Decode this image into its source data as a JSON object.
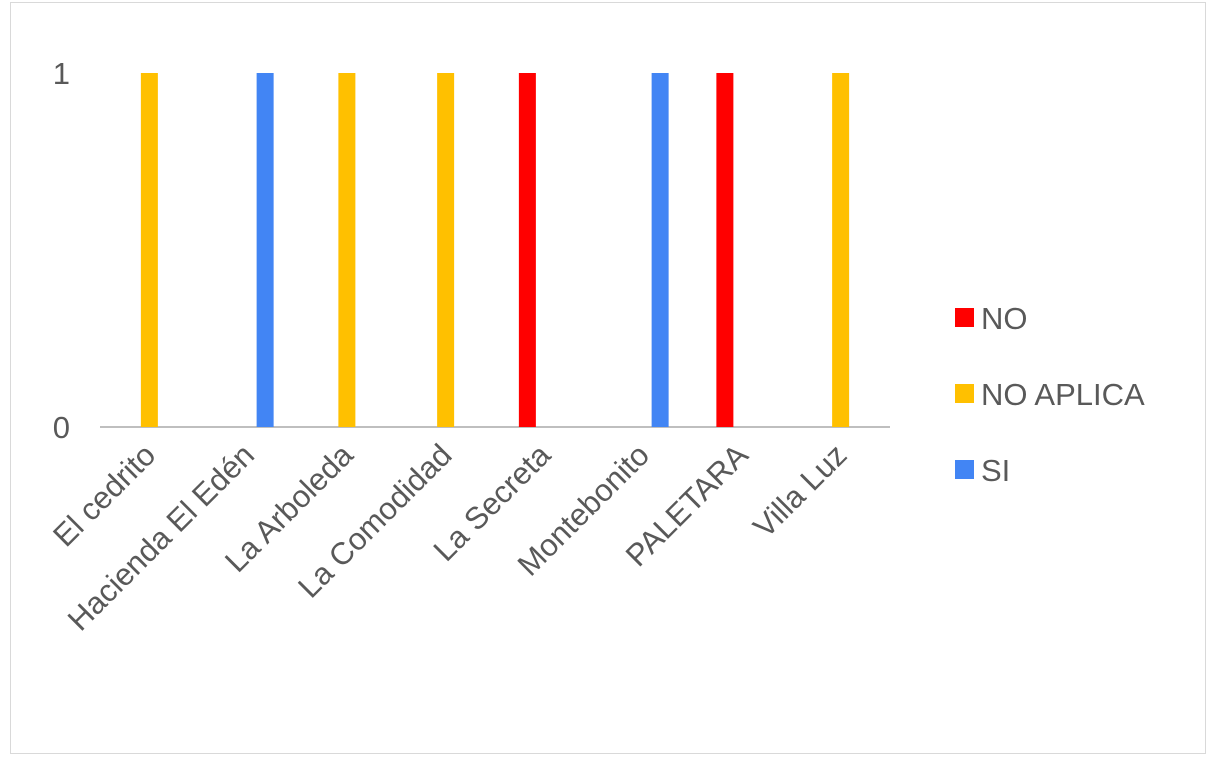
{
  "chart_data": {
    "type": "bar",
    "title": "",
    "xlabel": "",
    "ylabel": "",
    "ylim": [
      0,
      1
    ],
    "yticks": [
      "0",
      "1"
    ],
    "grid": false,
    "legend_position": "right",
    "categories": [
      "El cedrito",
      "Hacienda El Edén",
      "La Arboleda",
      "La Comodidad",
      "La Secreta",
      "Montebonito",
      "PALETARA",
      "Villa Luz"
    ],
    "series": [
      {
        "name": "NO",
        "color": "#ff0000",
        "values": [
          0,
          0,
          0,
          0,
          1,
          0,
          1,
          0
        ]
      },
      {
        "name": "NO APLICA",
        "color": "#ffc000",
        "values": [
          1,
          0,
          1,
          1,
          0,
          0,
          0,
          1
        ]
      },
      {
        "name": "SI",
        "color": "#4285f4",
        "values": [
          0,
          1,
          0,
          0,
          0,
          1,
          0,
          0
        ]
      }
    ]
  }
}
